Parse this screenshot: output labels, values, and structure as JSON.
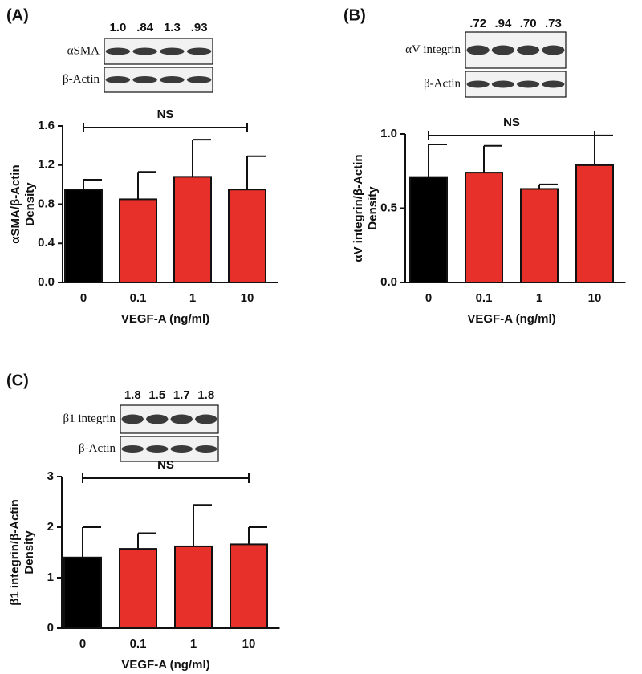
{
  "chart_data": [
    {
      "type": "bar",
      "panel": "(A)",
      "blot_rows": [
        "αSMA",
        "β-Actin"
      ],
      "blot_quantification": [
        "1.0",
        ".84",
        "1.3",
        ".93"
      ],
      "ylabel": [
        "αSMA/β-Actin",
        "Density"
      ],
      "xlabel": "VEGF-A (ng/ml)",
      "categories": [
        "0",
        "0.1",
        "1",
        "10"
      ],
      "values": [
        0.95,
        0.85,
        1.08,
        0.95
      ],
      "errors": [
        0.1,
        0.28,
        0.38,
        0.34
      ],
      "colors": [
        "#000000",
        "#e8302a",
        "#e8302a",
        "#e8302a"
      ],
      "ylim": [
        0,
        1.6
      ],
      "yticks": [
        {
          "value": 0,
          "label": "0.0"
        },
        0.4,
        0.8,
        1.2,
        1.6
      ],
      "annotation": "NS"
    },
    {
      "type": "bar",
      "panel": "(B)",
      "blot_rows": [
        "αV integrin",
        "β-Actin"
      ],
      "blot_quantification": [
        ".72",
        ".94",
        ".70",
        ".73"
      ],
      "ylabel": [
        "αV integrin/β-Actin",
        "Density"
      ],
      "xlabel": "VEGF-A (ng/ml)",
      "categories": [
        "0",
        "0.1",
        "1",
        "10"
      ],
      "values": [
        0.71,
        0.74,
        0.63,
        0.79
      ],
      "errors": [
        0.22,
        0.18,
        0.03,
        0.2
      ],
      "colors": [
        "#000000",
        "#e8302a",
        "#e8302a",
        "#e8302a"
      ],
      "ylim": [
        0,
        1.0
      ],
      "yticks": [
        {
          "value": 0,
          "label": "0.0"
        },
        0.5,
        {
          "value": 1,
          "label": "1.0"
        }
      ],
      "annotation": "NS"
    },
    {
      "type": "bar",
      "panel": "(C)",
      "blot_rows": [
        "β1 integrin",
        "β-Actin"
      ],
      "blot_quantification": [
        "1.8",
        "1.5",
        "1.7",
        "1.8"
      ],
      "ylabel": [
        "β1 integrin/β-Actin",
        "Density"
      ],
      "xlabel": "VEGF-A (ng/ml)",
      "categories": [
        "0",
        "0.1",
        "1",
        "10"
      ],
      "values": [
        1.4,
        1.57,
        1.62,
        1.66
      ],
      "errors": [
        0.6,
        0.31,
        0.82,
        0.34
      ],
      "colors": [
        "#000000",
        "#e8302a",
        "#e8302a",
        "#e8302a"
      ],
      "ylim": [
        0,
        3
      ],
      "yticks": [
        0,
        1,
        2,
        3
      ],
      "annotation": "NS"
    }
  ]
}
